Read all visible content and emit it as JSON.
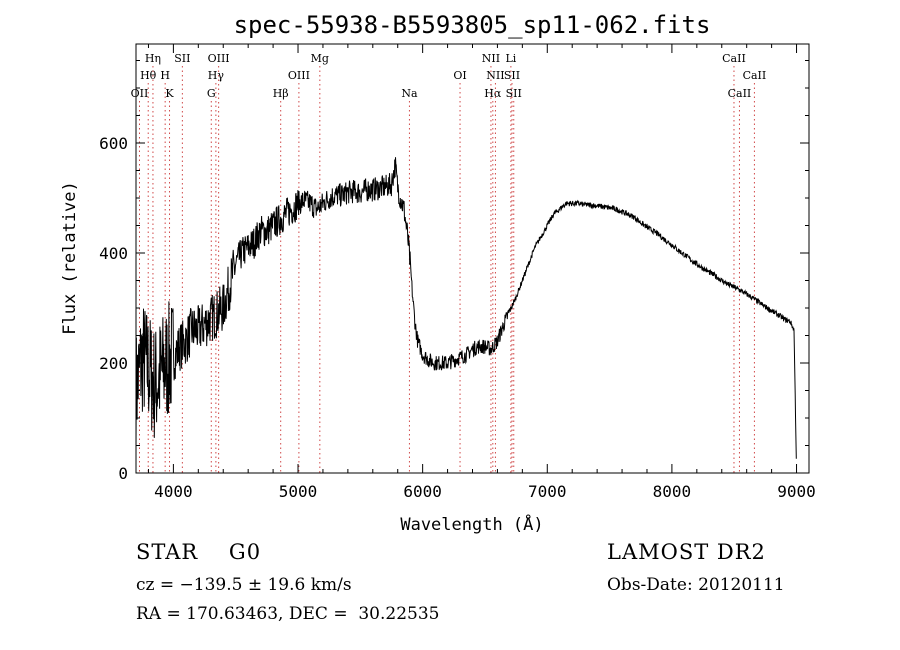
{
  "chart_data": {
    "type": "line",
    "title": "spec-55938-B5593805_sp11-062.fits",
    "xlabel": "Wavelength (Å)",
    "ylabel": "Flux (relative)",
    "xlim": [
      3700,
      9100
    ],
    "ylim": [
      0,
      780
    ],
    "x_ticks": [
      4000,
      5000,
      6000,
      7000,
      8000,
      9000
    ],
    "y_ticks": [
      0,
      200,
      400,
      600
    ],
    "grid": false,
    "series": [
      {
        "name": "flux",
        "x": [
          3700,
          3750,
          3800,
          3850,
          3900,
          3950,
          4000,
          4050,
          4100,
          4150,
          4200,
          4250,
          4300,
          4350,
          4400,
          4450,
          4500,
          4550,
          4600,
          4650,
          4700,
          4750,
          4800,
          4850,
          4900,
          4950,
          5000,
          5050,
          5100,
          5150,
          5200,
          5250,
          5300,
          5350,
          5400,
          5450,
          5500,
          5550,
          5600,
          5650,
          5700,
          5750,
          5780,
          5800,
          5820,
          5850,
          5880,
          5900,
          5920,
          5940,
          5960,
          6000,
          6050,
          6100,
          6150,
          6200,
          6250,
          6300,
          6350,
          6400,
          6450,
          6500,
          6550,
          6600,
          6650,
          6700,
          6750,
          6800,
          6850,
          6900,
          6950,
          7000,
          7050,
          7100,
          7150,
          7200,
          7250,
          7300,
          7350,
          7400,
          7450,
          7500,
          7550,
          7600,
          7650,
          7700,
          7750,
          7800,
          7850,
          7900,
          7950,
          8000,
          8050,
          8100,
          8150,
          8200,
          8250,
          8300,
          8350,
          8400,
          8450,
          8500,
          8550,
          8600,
          8650,
          8700,
          8750,
          8800,
          8850,
          8900,
          8950,
          8980,
          8990,
          9000
        ],
        "y": [
          150,
          210,
          190,
          160,
          180,
          200,
          210,
          230,
          240,
          260,
          260,
          270,
          280,
          290,
          300,
          340,
          380,
          400,
          410,
          420,
          440,
          440,
          450,
          460,
          470,
          480,
          490,
          495,
          490,
          480,
          490,
          500,
          505,
          505,
          510,
          512,
          510,
          515,
          515,
          518,
          520,
          525,
          560,
          520,
          500,
          480,
          430,
          380,
          320,
          270,
          240,
          215,
          205,
          200,
          200,
          200,
          205,
          210,
          215,
          225,
          230,
          230,
          225,
          240,
          270,
          295,
          320,
          350,
          380,
          410,
          430,
          450,
          470,
          480,
          490,
          490,
          490,
          488,
          487,
          486,
          484,
          482,
          480,
          475,
          470,
          465,
          455,
          447,
          440,
          432,
          423,
          415,
          405,
          397,
          388,
          380,
          372,
          365,
          358,
          350,
          343,
          338,
          332,
          325,
          318,
          310,
          302,
          295,
          288,
          280,
          275,
          260,
          130,
          0
        ]
      }
    ],
    "line_markers": [
      {
        "label": "OII",
        "x": 3728,
        "row": 3
      },
      {
        "label": "Hθ",
        "x": 3798,
        "row": 2
      },
      {
        "label": "Hη",
        "x": 3836,
        "row": 1
      },
      {
        "label": "H",
        "x": 3934,
        "row": 2
      },
      {
        "label": "K",
        "x": 3969,
        "row": 3
      },
      {
        "label": "SII",
        "x": 4072,
        "row": 1
      },
      {
        "label": "G",
        "x": 4304,
        "row": 3
      },
      {
        "label": "Hγ",
        "x": 4341,
        "row": 2
      },
      {
        "label": "OIII",
        "x": 4363,
        "row": 1
      },
      {
        "label": "Hβ",
        "x": 4861,
        "row": 3
      },
      {
        "label": "OIII",
        "x": 5007,
        "row": 2
      },
      {
        "label": "Mg",
        "x": 5175,
        "row": 1
      },
      {
        "label": "Na",
        "x": 5894,
        "row": 3
      },
      {
        "label": "OI",
        "x": 6300,
        "row": 2
      },
      {
        "label": "NII",
        "x": 6548,
        "row": 1
      },
      {
        "label": "Hα",
        "x": 6563,
        "row": 3
      },
      {
        "label": "NII",
        "x": 6584,
        "row": 2
      },
      {
        "label": "Li",
        "x": 6708,
        "row": 1
      },
      {
        "label": "SII",
        "x": 6717,
        "row": 2
      },
      {
        "label": "SII",
        "x": 6731,
        "row": 3
      },
      {
        "label": "CaII",
        "x": 8498,
        "row": 1
      },
      {
        "label": "CaII",
        "x": 8542,
        "row": 3
      },
      {
        "label": "CaII",
        "x": 8662,
        "row": 2
      }
    ]
  },
  "info": {
    "object": "STAR    G0",
    "survey": "LAMOST DR2",
    "redshift": "cz = −139.5 ± 19.6 km/s",
    "obs_date": "Obs-Date: 20120111",
    "coords": "RA = 170.63463, DEC =  30.22535"
  },
  "colors": {
    "spectrum": "#000000",
    "marker_line": "#d04848",
    "text": "#000000"
  }
}
